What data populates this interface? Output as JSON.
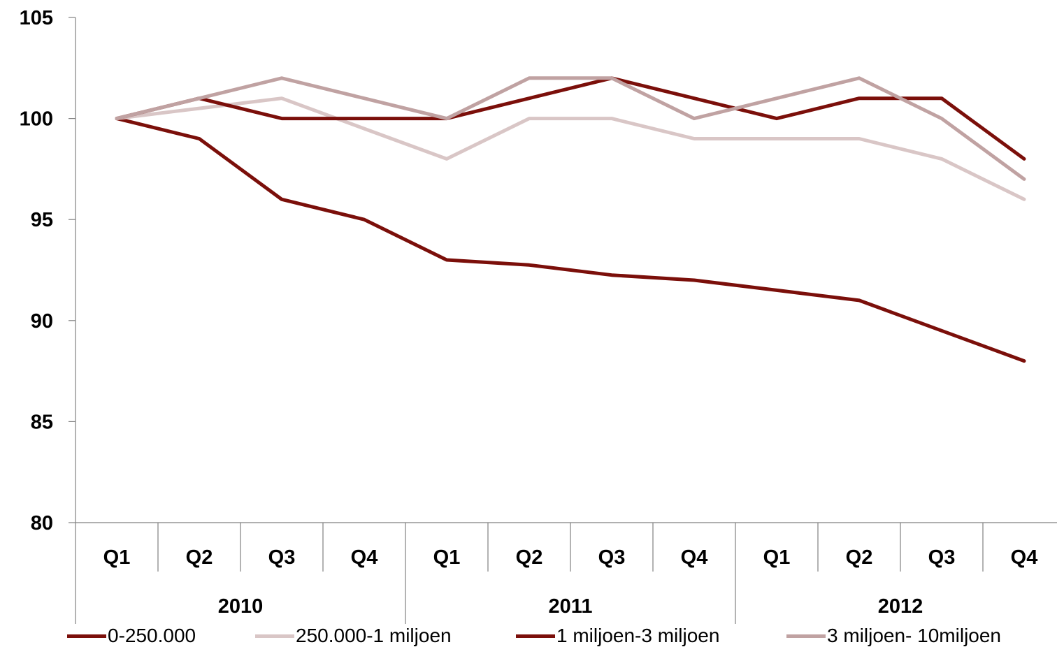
{
  "chart_data": {
    "type": "line",
    "y_ticks": [
      "80",
      "85",
      "90",
      "95",
      "100",
      "105"
    ],
    "ylim": [
      80,
      105
    ],
    "quarters": [
      "Q1",
      "Q2",
      "Q3",
      "Q4",
      "Q1",
      "Q2",
      "Q3",
      "Q4",
      "Q1",
      "Q2",
      "Q3",
      "Q4"
    ],
    "years": [
      "2010",
      "2011",
      "2012"
    ],
    "grid": false,
    "legend_position": "bottom",
    "series": [
      {
        "name": "0-250.000",
        "color": "#7B0F0A",
        "values": [
          100,
          99,
          96,
          95,
          93,
          92.75,
          92.25,
          92,
          91.5,
          91,
          89.5,
          88
        ]
      },
      {
        "name": "250.000-1 miljoen",
        "color": "#D9C6C6",
        "values": [
          100,
          100.5,
          101,
          99.5,
          98,
          100,
          100,
          99,
          99,
          99,
          98,
          96
        ]
      },
      {
        "name": "1 miljoen-3 miljoen",
        "color": "#7B0F0A",
        "values": [
          100,
          101,
          100,
          100,
          100,
          101,
          102,
          101,
          100,
          101,
          101,
          98
        ]
      },
      {
        "name": "3 miljoen- 10miljoen",
        "color": "#C0A2A2",
        "values": [
          100,
          101,
          102,
          101,
          100,
          102,
          102,
          100,
          101,
          102,
          100,
          97
        ]
      }
    ]
  }
}
